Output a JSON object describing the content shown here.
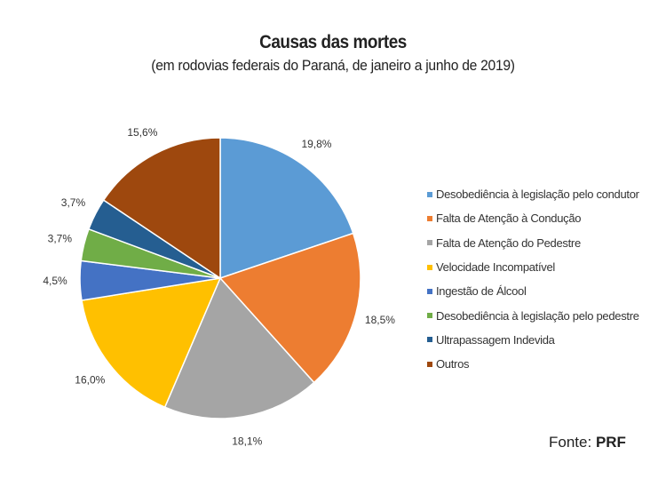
{
  "chart_data": {
    "type": "pie",
    "title": "Causas das mortes",
    "subtitle": "(em rodovias federais do Paraná, de janeiro a junho de 2019)",
    "categories": [
      "Desobediência à legislação pelo condutor",
      "Falta de Atenção à Condução",
      "Falta de Atenção do Pedestre",
      "Velocidade Incompatível",
      "Ingestão de Álcool",
      "Desobediência à legislação pelo pedestre",
      "Ultrapassagem Indevida",
      "Outros"
    ],
    "values": [
      19.8,
      18.5,
      18.1,
      16.0,
      4.5,
      3.7,
      3.7,
      15.6
    ],
    "labels": [
      "19,8%",
      "18,5%",
      "18,1%",
      "16,0%",
      "4,5%",
      "3,7%",
      "3,7%",
      "15,6%"
    ],
    "colors": [
      "#5B9BD5",
      "#ED7D31",
      "#A5A5A5",
      "#FFC000",
      "#4472C4",
      "#70AD47",
      "#255E91",
      "#9E480E"
    ],
    "legend_position": "right"
  },
  "source": {
    "label": "Fonte:",
    "value": "PRF"
  }
}
